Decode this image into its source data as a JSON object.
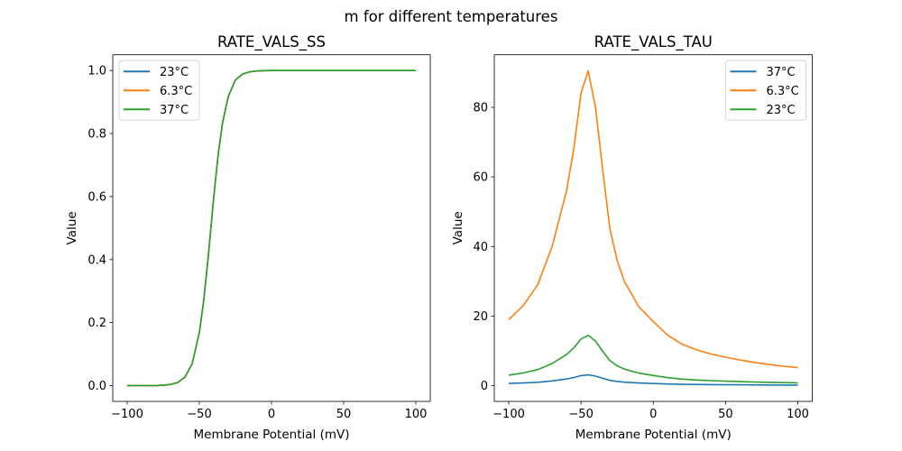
{
  "suptitle": "m for different temperatures",
  "chart_data": [
    {
      "type": "line",
      "title": "RATE_VALS_SS",
      "xlabel": "Membrane Potential (mV)",
      "ylabel": "Value",
      "xlim": [
        -110,
        110
      ],
      "ylim": [
        -0.05,
        1.05
      ],
      "xticks": [
        -100,
        -50,
        0,
        50,
        100
      ],
      "xtick_labels": [
        "−100",
        "−50",
        "0",
        "50",
        "100"
      ],
      "yticks": [
        0,
        0.2,
        0.4,
        0.6,
        0.8,
        1.0
      ],
      "ytick_labels": [
        "0.0",
        "0.2",
        "0.4",
        "0.6",
        "0.8",
        "1.0"
      ],
      "legend_position": "top-left",
      "x": [
        -100,
        -95,
        -90,
        -85,
        -80,
        -75,
        -70,
        -65,
        -60,
        -55,
        -50,
        -47,
        -44,
        -42,
        -40,
        -37,
        -34,
        -30,
        -25,
        -20,
        -15,
        -10,
        -5,
        0,
        10,
        20,
        30,
        40,
        50,
        60,
        70,
        80,
        90,
        100
      ],
      "series": [
        {
          "name": "23°C",
          "color": "#1f77b4",
          "values": [
            0.0,
            0.0,
            0.0,
            0.0001,
            0.0005,
            0.0013,
            0.0037,
            0.0099,
            0.0266,
            0.069,
            0.168,
            0.269,
            0.401,
            0.5,
            0.599,
            0.731,
            0.832,
            0.917,
            0.97,
            0.989,
            0.996,
            0.9985,
            0.9995,
            0.9998,
            1,
            1,
            1,
            1,
            1,
            1,
            1,
            1,
            1,
            1
          ]
        },
        {
          "name": "6.3°C",
          "color": "#ff7f0e",
          "values": [
            0.0,
            0.0,
            0.0,
            0.0001,
            0.0005,
            0.0013,
            0.0037,
            0.0099,
            0.0266,
            0.069,
            0.168,
            0.269,
            0.401,
            0.5,
            0.599,
            0.731,
            0.832,
            0.917,
            0.97,
            0.989,
            0.996,
            0.9985,
            0.9995,
            0.9998,
            1,
            1,
            1,
            1,
            1,
            1,
            1,
            1,
            1,
            1
          ]
        },
        {
          "name": "37°C",
          "color": "#2ca02c",
          "values": [
            0.0,
            0.0,
            0.0,
            0.0001,
            0.0005,
            0.0013,
            0.0037,
            0.0099,
            0.0266,
            0.069,
            0.168,
            0.269,
            0.401,
            0.5,
            0.599,
            0.731,
            0.832,
            0.917,
            0.97,
            0.989,
            0.996,
            0.9985,
            0.9995,
            0.9998,
            1,
            1,
            1,
            1,
            1,
            1,
            1,
            1,
            1,
            1
          ]
        }
      ]
    },
    {
      "type": "line",
      "title": "RATE_VALS_TAU",
      "xlabel": "Membrane Potential (mV)",
      "ylabel": "Value",
      "xlim": [
        -110,
        110
      ],
      "ylim": [
        -4.5,
        95.1
      ],
      "xticks": [
        -100,
        -50,
        0,
        50,
        100
      ],
      "xtick_labels": [
        "−100",
        "−50",
        "0",
        "50",
        "100"
      ],
      "yticks": [
        0,
        20,
        40,
        60,
        80
      ],
      "ytick_labels": [
        "0",
        "20",
        "40",
        "60",
        "80"
      ],
      "legend_position": "top-right",
      "x": [
        -100,
        -90,
        -80,
        -70,
        -60,
        -55,
        -50,
        -45,
        -40,
        -35,
        -30,
        -25,
        -20,
        -10,
        0,
        10,
        20,
        30,
        40,
        50,
        60,
        70,
        80,
        90,
        100
      ],
      "series": [
        {
          "name": "37°C",
          "color": "#1f77b4",
          "values": [
            0.66,
            0.79,
            1.0,
            1.38,
            1.93,
            2.34,
            2.9,
            3.12,
            2.76,
            2.14,
            1.55,
            1.24,
            1.03,
            0.78,
            0.63,
            0.5,
            0.41,
            0.36,
            0.31,
            0.28,
            0.26,
            0.23,
            0.21,
            0.19,
            0.18
          ]
        },
        {
          "name": "6.3°C",
          "color": "#ff7f0e",
          "values": [
            19,
            23,
            29,
            40,
            56,
            68,
            84,
            90.5,
            80,
            62,
            45,
            36,
            30,
            22.7,
            18.4,
            14.5,
            11.9,
            10.3,
            9.1,
            8.2,
            7.4,
            6.7,
            6.1,
            5.6,
            5.2
          ]
        },
        {
          "name": "23°C",
          "color": "#2ca02c",
          "values": [
            3.04,
            3.67,
            4.63,
            6.39,
            8.95,
            10.86,
            13.42,
            14.46,
            12.78,
            9.9,
            7.19,
            5.75,
            4.79,
            3.63,
            2.94,
            2.32,
            1.9,
            1.65,
            1.45,
            1.31,
            1.18,
            1.07,
            0.97,
            0.89,
            0.83
          ]
        }
      ]
    }
  ]
}
